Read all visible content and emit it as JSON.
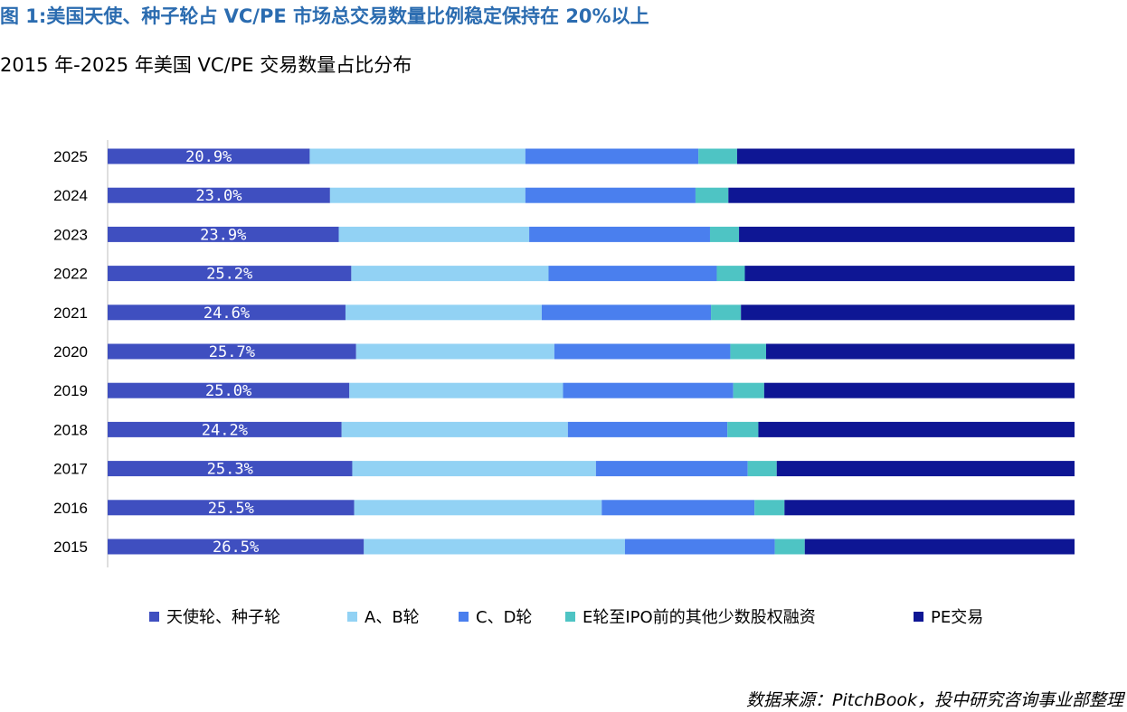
{
  "title": "图 1:美国天使、种子轮占 VC/PE 市场总交易数量比例稳定保持在 20%以上",
  "subtitle": "2015 年-2025 年美国 VC/PE 交易数量占比分布",
  "source": "数据来源：PitchBook，投中研究咨询事业部整理",
  "colors": {
    "title": "#2b6cb0",
    "seed": "#3f4fc0",
    "ab": "#92d2f4",
    "cd": "#4a7fee",
    "e_ipo": "#4ec4c4",
    "pe": "#0e1694"
  },
  "chart_data": {
    "type": "bar",
    "orientation": "horizontal",
    "stacked": "100%",
    "title": "2015 年-2025 年美国 VC/PE 交易数量占比分布",
    "xlabel": "",
    "ylabel": "",
    "xlim": [
      0,
      100
    ],
    "categories": [
      "2025",
      "2024",
      "2023",
      "2022",
      "2021",
      "2020",
      "2019",
      "2018",
      "2017",
      "2016",
      "2015"
    ],
    "series": [
      {
        "name": "天使轮、种子轮",
        "color_key": "seed",
        "values": [
          20.9,
          23.0,
          23.9,
          25.2,
          24.6,
          25.7,
          25.0,
          24.2,
          25.3,
          25.5,
          26.5
        ],
        "labels": [
          "20.9%",
          "23.0%",
          "23.9%",
          "25.2%",
          "24.6%",
          "25.7%",
          "25.0%",
          "24.2%",
          "25.3%",
          "25.5%",
          "26.5%"
        ]
      },
      {
        "name": "A、B轮",
        "color_key": "ab",
        "values": [
          22.3,
          20.2,
          19.7,
          20.4,
          20.3,
          20.5,
          22.1,
          23.4,
          25.2,
          25.6,
          27.0
        ]
      },
      {
        "name": "C、D轮",
        "color_key": "cd",
        "values": [
          17.9,
          17.6,
          18.7,
          17.4,
          17.5,
          18.2,
          17.6,
          16.5,
          15.7,
          15.8,
          15.5
        ]
      },
      {
        "name": "E轮至IPO前的其他少数股权融资",
        "color_key": "e_ipo",
        "values": [
          4.0,
          3.4,
          3.0,
          2.9,
          3.1,
          3.7,
          3.2,
          3.2,
          3.0,
          3.1,
          3.1
        ]
      },
      {
        "name": "PE交易",
        "color_key": "pe",
        "values": [
          34.9,
          35.8,
          34.7,
          34.1,
          34.5,
          31.9,
          32.1,
          32.7,
          30.8,
          30.0,
          27.9
        ]
      }
    ],
    "legend_position": "bottom",
    "grid": false
  }
}
